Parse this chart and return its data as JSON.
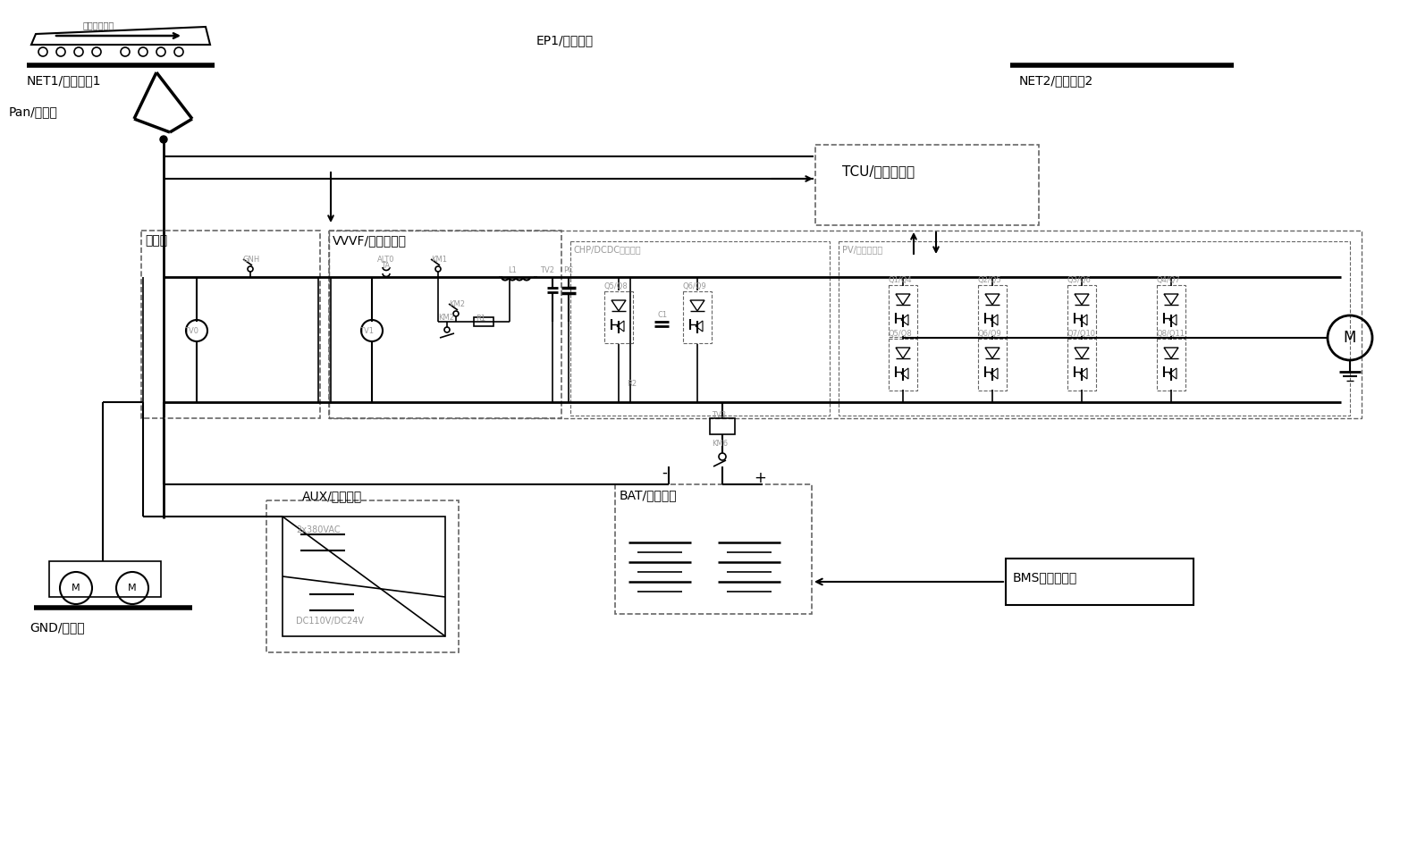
{
  "bg_color": "#ffffff",
  "line_color": "#000000",
  "dashed_color": "#666666",
  "gray_color": "#999999",
  "labels": {
    "net1": "NET1/电网区间1",
    "net2": "NET2/电网区间2",
    "ep1": "EP1/无网区间",
    "pan": "Pan/受电弓",
    "hvy_box": "高压筱",
    "vvvf": "VVVF/牵引变流器",
    "tcu": "TCU/牵引控制器",
    "aux": "AUX/辅助电源",
    "bat": "BAT/车载储能",
    "bms": "BMS储能控制器",
    "gnd": "GND/回流轨",
    "train_dir": "列车运行方向",
    "chp_dc": "CHP/DCDC斩波模块",
    "pv_inv": "PV/逆变器模块",
    "aux_ac": "2x380VAC",
    "aux_dc": "DC110V/DC24V"
  }
}
